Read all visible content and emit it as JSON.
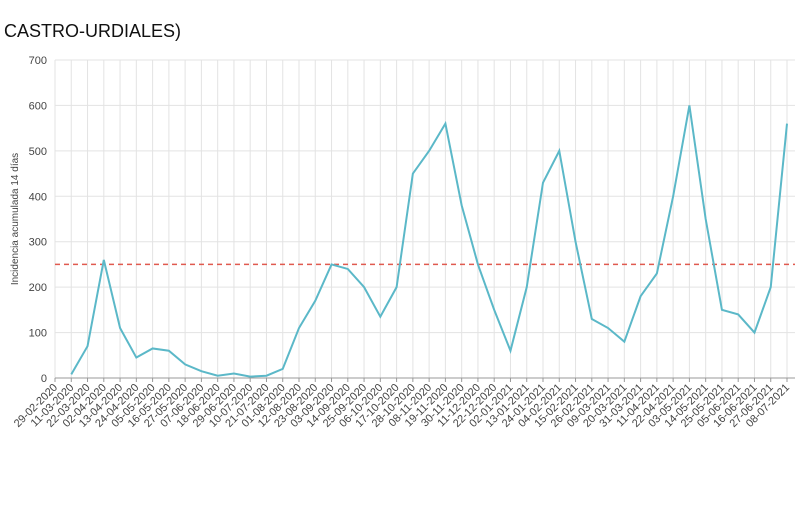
{
  "chart_data": {
    "type": "line",
    "title": "CASTRO-URDIALES)",
    "y_label": "Incidencia acumulada 14 días",
    "categories": [
      "29-02-2020",
      "11-03-2020",
      "22-03-2020",
      "02-04-2020",
      "13-04-2020",
      "24-04-2020",
      "05-05-2020",
      "16-05-2020",
      "27-05-2020",
      "07-06-2020",
      "18-06-2020",
      "29-06-2020",
      "10-07-2020",
      "21-07-2020",
      "01-08-2020",
      "12-08-2020",
      "23-08-2020",
      "03-09-2020",
      "14-09-2020",
      "25-09-2020",
      "06-10-2020",
      "17-10-2020",
      "28-10-2020",
      "08-11-2020",
      "19-11-2020",
      "30-11-2020",
      "11-12-2020",
      "22-12-2020",
      "02-01-2021",
      "13-01-2021",
      "24-01-2021",
      "04-02-2021",
      "15-02-2021",
      "26-02-2021",
      "09-03-2021",
      "20-03-2021",
      "31-03-2021",
      "11-04-2021",
      "22-04-2021",
      "03-05-2021",
      "14-05-2021",
      "25-05-2021",
      "05-06-2021",
      "16-06-2021",
      "27-06-2021",
      "08-07-2021"
    ],
    "series": [
      {
        "color": "#5bb8c8",
        "values": [
          null,
          8,
          70,
          260,
          110,
          45,
          65,
          60,
          30,
          15,
          5,
          10,
          3,
          5,
          20,
          110,
          170,
          250,
          240,
          200,
          135,
          200,
          450,
          500,
          560,
          380,
          250,
          150,
          60,
          200,
          430,
          500,
          300,
          130,
          110,
          80,
          180,
          230,
          400,
          600,
          350,
          150,
          140,
          100,
          200,
          560
        ]
      }
    ],
    "reference_line": {
      "value": 250,
      "color": "#e05a4f"
    },
    "ylim": [
      0,
      700
    ],
    "yticks": [
      0,
      100,
      200,
      300,
      400,
      500,
      600,
      700
    ],
    "grid": true
  }
}
